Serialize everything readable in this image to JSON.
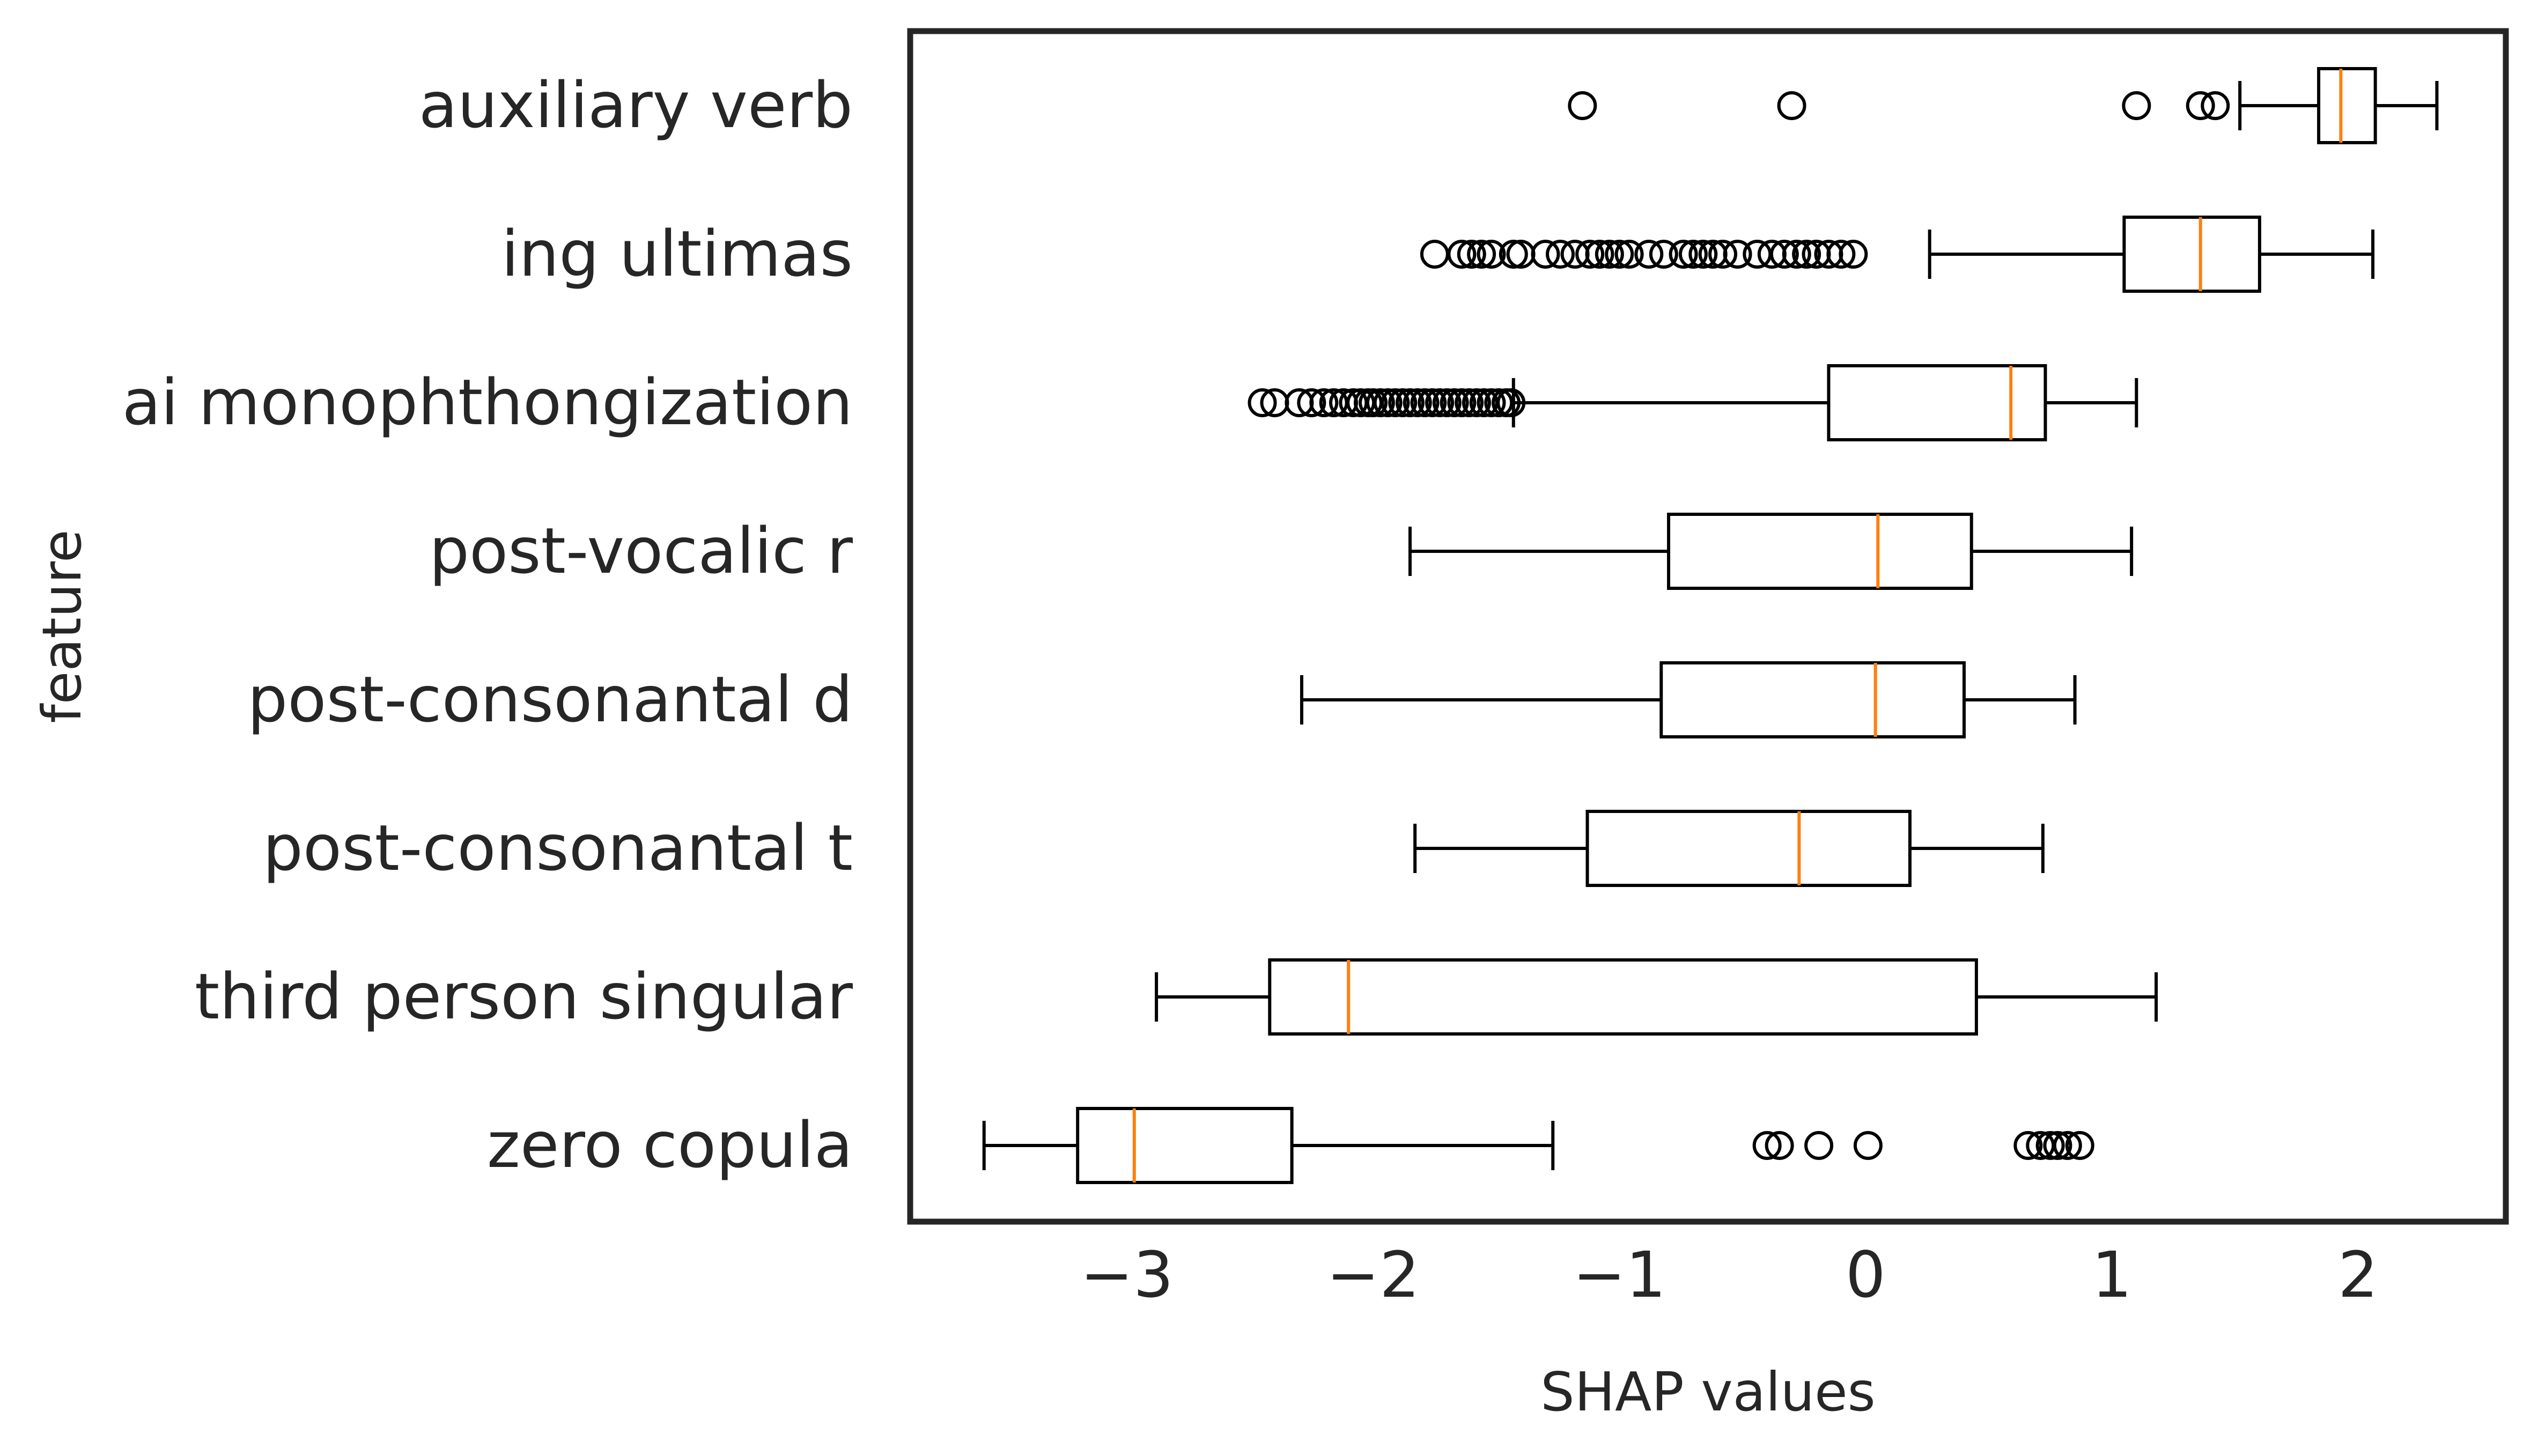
{
  "chart_data": {
    "type": "boxplot",
    "orientation": "horizontal",
    "title": "",
    "xlabel": "SHAP values",
    "ylabel": "feature",
    "xlim": [
      -3.88,
      2.6
    ],
    "xticks": [
      -3,
      -2,
      -1,
      0,
      1,
      2
    ],
    "xtick_labels": [
      "−3",
      "−2",
      "−1",
      "0",
      "1",
      "2"
    ],
    "grid": false,
    "legend": "none",
    "colors": {
      "box": "#000000",
      "median": "#ff7f0e",
      "frame": "#262626"
    },
    "categories": [
      "auxiliary verb",
      "ing ultimas",
      "ai monophthongization",
      "post-vocalic r",
      "post-consonantal d",
      "post-consonantal t",
      "third person singular",
      "zero copula"
    ],
    "boxes": [
      {
        "whislo": 1.52,
        "q1": 1.84,
        "med": 1.93,
        "q3": 2.07,
        "whishi": 2.32,
        "fliers": [
          -1.15,
          -0.3,
          1.1,
          1.36,
          1.42
        ]
      },
      {
        "whislo": 0.26,
        "q1": 1.05,
        "med": 1.36,
        "q3": 1.6,
        "whishi": 2.06,
        "fliers": [
          -1.75,
          -1.64,
          -1.6,
          -1.56,
          -1.52,
          -1.43,
          -1.4,
          -1.3,
          -1.24,
          -1.18,
          -1.12,
          -1.08,
          -1.04,
          -1.0,
          -0.96,
          -0.88,
          -0.82,
          -0.74,
          -0.7,
          -0.66,
          -0.62,
          -0.58,
          -0.52,
          -0.44,
          -0.38,
          -0.33,
          -0.28,
          -0.24,
          -0.2,
          -0.15,
          -0.1,
          -0.05
        ]
      },
      {
        "whislo": -1.43,
        "q1": -0.15,
        "med": 0.59,
        "q3": 0.73,
        "whishi": 1.1,
        "fliers": [
          -2.45,
          -2.4,
          -2.3,
          -2.25,
          -2.2,
          -2.16,
          -2.12,
          -2.08,
          -2.05,
          -2.02,
          -2.0,
          -1.97,
          -1.94,
          -1.91,
          -1.88,
          -1.85,
          -1.82,
          -1.79,
          -1.76,
          -1.73,
          -1.7,
          -1.67,
          -1.64,
          -1.61,
          -1.58,
          -1.55,
          -1.52,
          -1.49,
          -1.46,
          -1.44
        ]
      },
      {
        "whislo": -1.85,
        "q1": -0.8,
        "med": 0.05,
        "q3": 0.43,
        "whishi": 1.08,
        "fliers": []
      },
      {
        "whislo": -2.29,
        "q1": -0.83,
        "med": 0.04,
        "q3": 0.4,
        "whishi": 0.85,
        "fliers": []
      },
      {
        "whislo": -1.83,
        "q1": -1.13,
        "med": -0.27,
        "q3": 0.18,
        "whishi": 0.72,
        "fliers": []
      },
      {
        "whislo": -2.88,
        "q1": -2.42,
        "med": -2.1,
        "q3": 0.45,
        "whishi": 1.18,
        "fliers": []
      },
      {
        "whislo": -3.58,
        "q1": -3.2,
        "med": -2.97,
        "q3": -2.33,
        "whishi": -1.27,
        "fliers": [
          -0.4,
          -0.35,
          -0.19,
          0.01,
          0.66,
          0.71,
          0.75,
          0.78,
          0.82,
          0.87
        ]
      }
    ]
  }
}
